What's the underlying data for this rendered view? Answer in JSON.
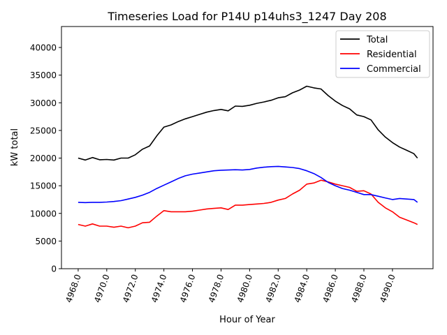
{
  "chart_data": {
    "type": "line",
    "title": "Timeseries Load for P14U p14uhs3_1247  Day 208",
    "xlabel": "Hour of Year",
    "ylabel": "kW total",
    "xlim": [
      4966.83,
      4992.84
    ],
    "ylim": [
      0,
      43790
    ],
    "xticks": [
      4968,
      4970,
      4972,
      4974,
      4976,
      4978,
      4980,
      4982,
      4984,
      4986,
      4988,
      4990
    ],
    "xtick_labels": [
      "4968.0",
      "4970.0",
      "4972.0",
      "4974.0",
      "4976.0",
      "4978.0",
      "4980.0",
      "4982.0",
      "4984.0",
      "4986.0",
      "4988.0",
      "4990.0"
    ],
    "yticks": [
      0,
      5000,
      10000,
      15000,
      20000,
      25000,
      30000,
      35000,
      40000
    ],
    "ytick_labels": [
      "0",
      "5000",
      "10000",
      "15000",
      "20000",
      "25000",
      "30000",
      "35000",
      "40000"
    ],
    "grid": false,
    "legend_position": "top-right",
    "x": [
      4968,
      4968.5,
      4969,
      4969.5,
      4970,
      4970.5,
      4971,
      4971.5,
      4972,
      4972.5,
      4973,
      4973.5,
      4974,
      4974.5,
      4975,
      4975.5,
      4976,
      4976.5,
      4977,
      4977.5,
      4978,
      4978.5,
      4979,
      4979.5,
      4980,
      4980.5,
      4981,
      4981.5,
      4982,
      4982.5,
      4983,
      4983.5,
      4984,
      4984.5,
      4985,
      4985.5,
      4986,
      4986.5,
      4987,
      4987.5,
      4988,
      4988.5,
      4989,
      4989.5,
      4990,
      4990.5,
      4991,
      4991.5,
      4991.75
    ],
    "series": [
      {
        "name": "Total",
        "color": "#000000",
        "values": [
          20000,
          19650,
          20100,
          19700,
          19750,
          19650,
          20000,
          20000,
          20600,
          21600,
          22200,
          24000,
          25600,
          26000,
          26600,
          27100,
          27500,
          27900,
          28300,
          28600,
          28800,
          28550,
          29400,
          29350,
          29550,
          29900,
          30150,
          30450,
          30900,
          31100,
          31800,
          32300,
          33000,
          32700,
          32500,
          31300,
          30300,
          29500,
          28900,
          27800,
          27500,
          26900,
          25100,
          23800,
          22800,
          22000,
          21400,
          20800,
          20000
        ]
      },
      {
        "name": "Residential",
        "color": "#ff0000",
        "values": [
          8000,
          7700,
          8100,
          7700,
          7700,
          7500,
          7700,
          7400,
          7700,
          8300,
          8400,
          9500,
          10500,
          10300,
          10300,
          10300,
          10400,
          10600,
          10800,
          10900,
          11000,
          10700,
          11500,
          11500,
          11600,
          11700,
          11800,
          12000,
          12400,
          12700,
          13500,
          14200,
          15300,
          15500,
          16000,
          15700,
          15300,
          15000,
          14700,
          14000,
          14100,
          13500,
          12000,
          11000,
          10300,
          9300,
          8800,
          8300,
          8000
        ]
      },
      {
        "name": "Commercial",
        "color": "#0000ff",
        "values": [
          12000,
          11950,
          12000,
          12000,
          12050,
          12150,
          12300,
          12600,
          12900,
          13300,
          13800,
          14500,
          15100,
          15700,
          16300,
          16800,
          17100,
          17300,
          17500,
          17700,
          17800,
          17850,
          17900,
          17850,
          17950,
          18200,
          18350,
          18450,
          18500,
          18400,
          18300,
          18100,
          17700,
          17200,
          16500,
          15600,
          15000,
          14500,
          14200,
          13800,
          13400,
          13400,
          13100,
          12800,
          12500,
          12700,
          12600,
          12500,
          12000
        ]
      }
    ]
  }
}
